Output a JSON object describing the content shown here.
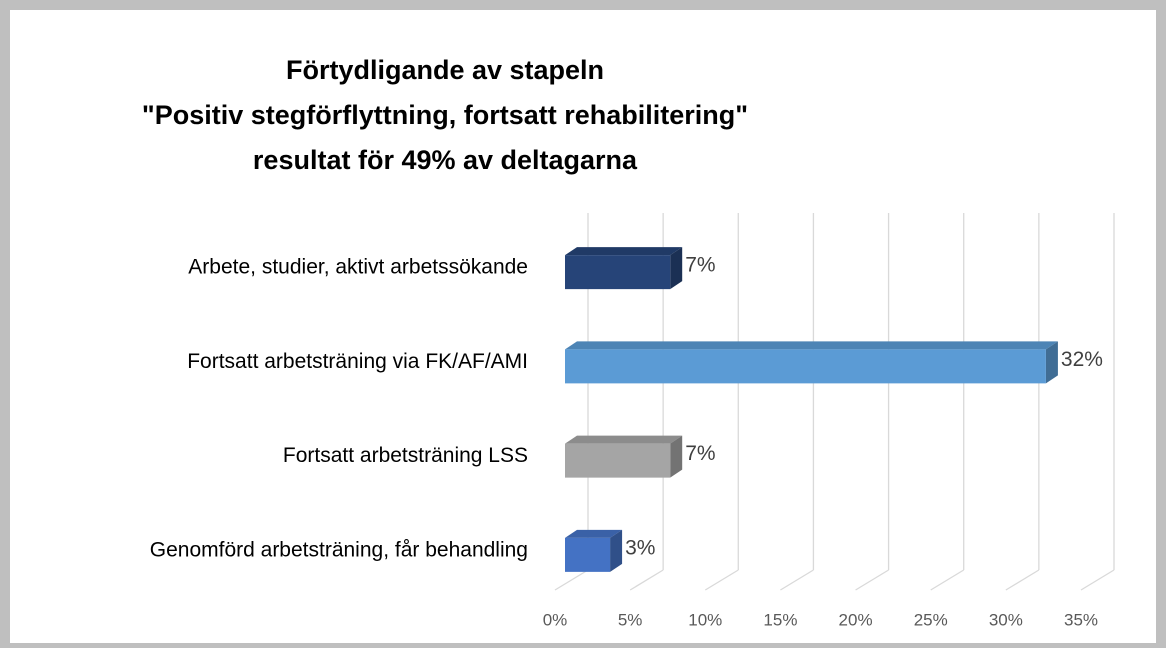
{
  "chart_data": {
    "type": "bar3d_horizontal",
    "title": [
      "Förtydligande av stapeln",
      "\"Positiv stegförflyttning, fortsatt rehabilitering\"",
      "resultat för 49% av deltagarna"
    ],
    "categories": [
      "Arbete, studier, aktivt arbetssökande",
      "Fortsatt arbetsträning via FK/AF/AMI",
      "Fortsatt arbetsträning LSS",
      "Genomförd arbetsträning, får behandling"
    ],
    "values": [
      7,
      32,
      7,
      3
    ],
    "value_labels": [
      "7%",
      "32%",
      "7%",
      "3%"
    ],
    "colors": [
      "#264478",
      "#5b9bd5",
      "#a5a5a5",
      "#4472c4"
    ],
    "xlim": [
      0,
      35
    ],
    "xticks": [
      {
        "value": 0,
        "label": "0%"
      },
      {
        "value": 5,
        "label": "5%"
      },
      {
        "value": 10,
        "label": "10%"
      },
      {
        "value": 15,
        "label": "15%"
      },
      {
        "value": 20,
        "label": "20%"
      },
      {
        "value": 25,
        "label": "25%"
      },
      {
        "value": 30,
        "label": "30%"
      },
      {
        "value": 35,
        "label": "35%"
      }
    ],
    "grid": true
  }
}
